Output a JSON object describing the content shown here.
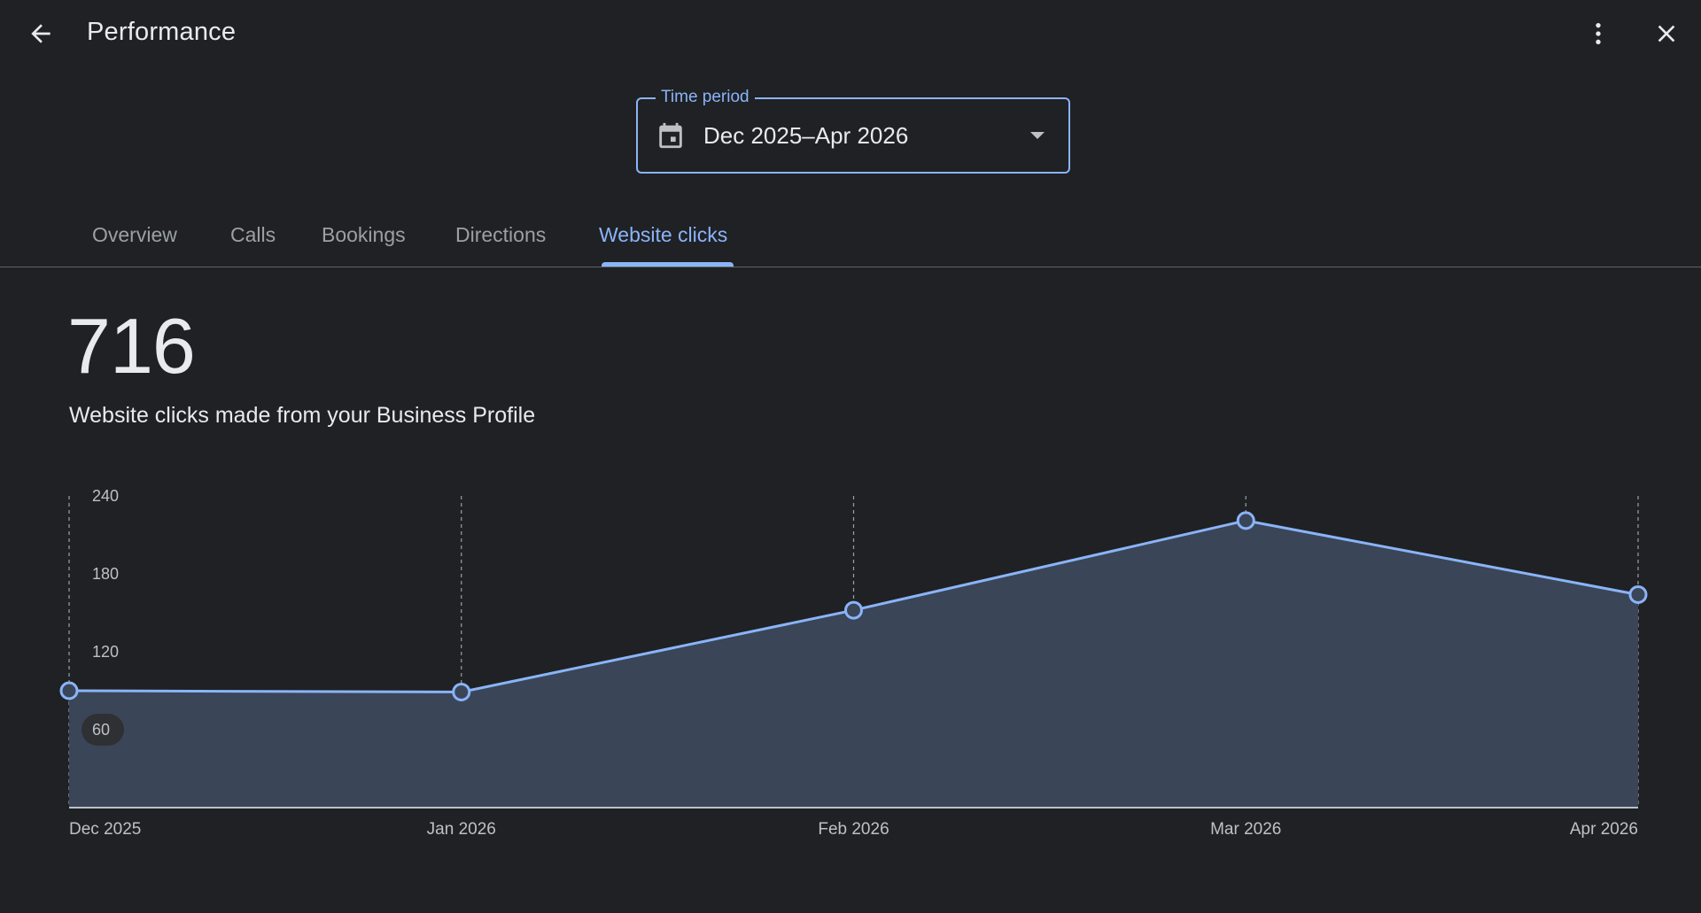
{
  "header": {
    "title": "Performance",
    "back_icon": "arrow-back-icon",
    "more_icon": "more-vert-icon",
    "close_icon": "close-icon"
  },
  "time_period": {
    "label": "Time period",
    "value": "Dec 2025–Apr 2026",
    "icon": "calendar-icon"
  },
  "tabs": [
    {
      "label": "Overview",
      "active": false
    },
    {
      "label": "Calls",
      "active": false
    },
    {
      "label": "Bookings",
      "active": false
    },
    {
      "label": "Directions",
      "active": false
    },
    {
      "label": "Website clicks",
      "active": true
    }
  ],
  "metric": {
    "value": "716",
    "description": "Website clicks made from your Business Profile"
  },
  "colors": {
    "accent": "#8ab4f8",
    "background": "#202124",
    "area_fill": "#3a4558"
  },
  "chart_data": {
    "type": "area",
    "x": [
      "Dec 2025",
      "Jan 2026",
      "Feb 2026",
      "Mar 2026",
      "Apr 2026"
    ],
    "values": [
      90,
      89,
      152,
      221,
      164
    ],
    "ylim": [
      0,
      240
    ],
    "yticks": [
      "60",
      "120",
      "180",
      "240"
    ],
    "grid": "vertical-dashed",
    "highlighted_tick": "60"
  }
}
